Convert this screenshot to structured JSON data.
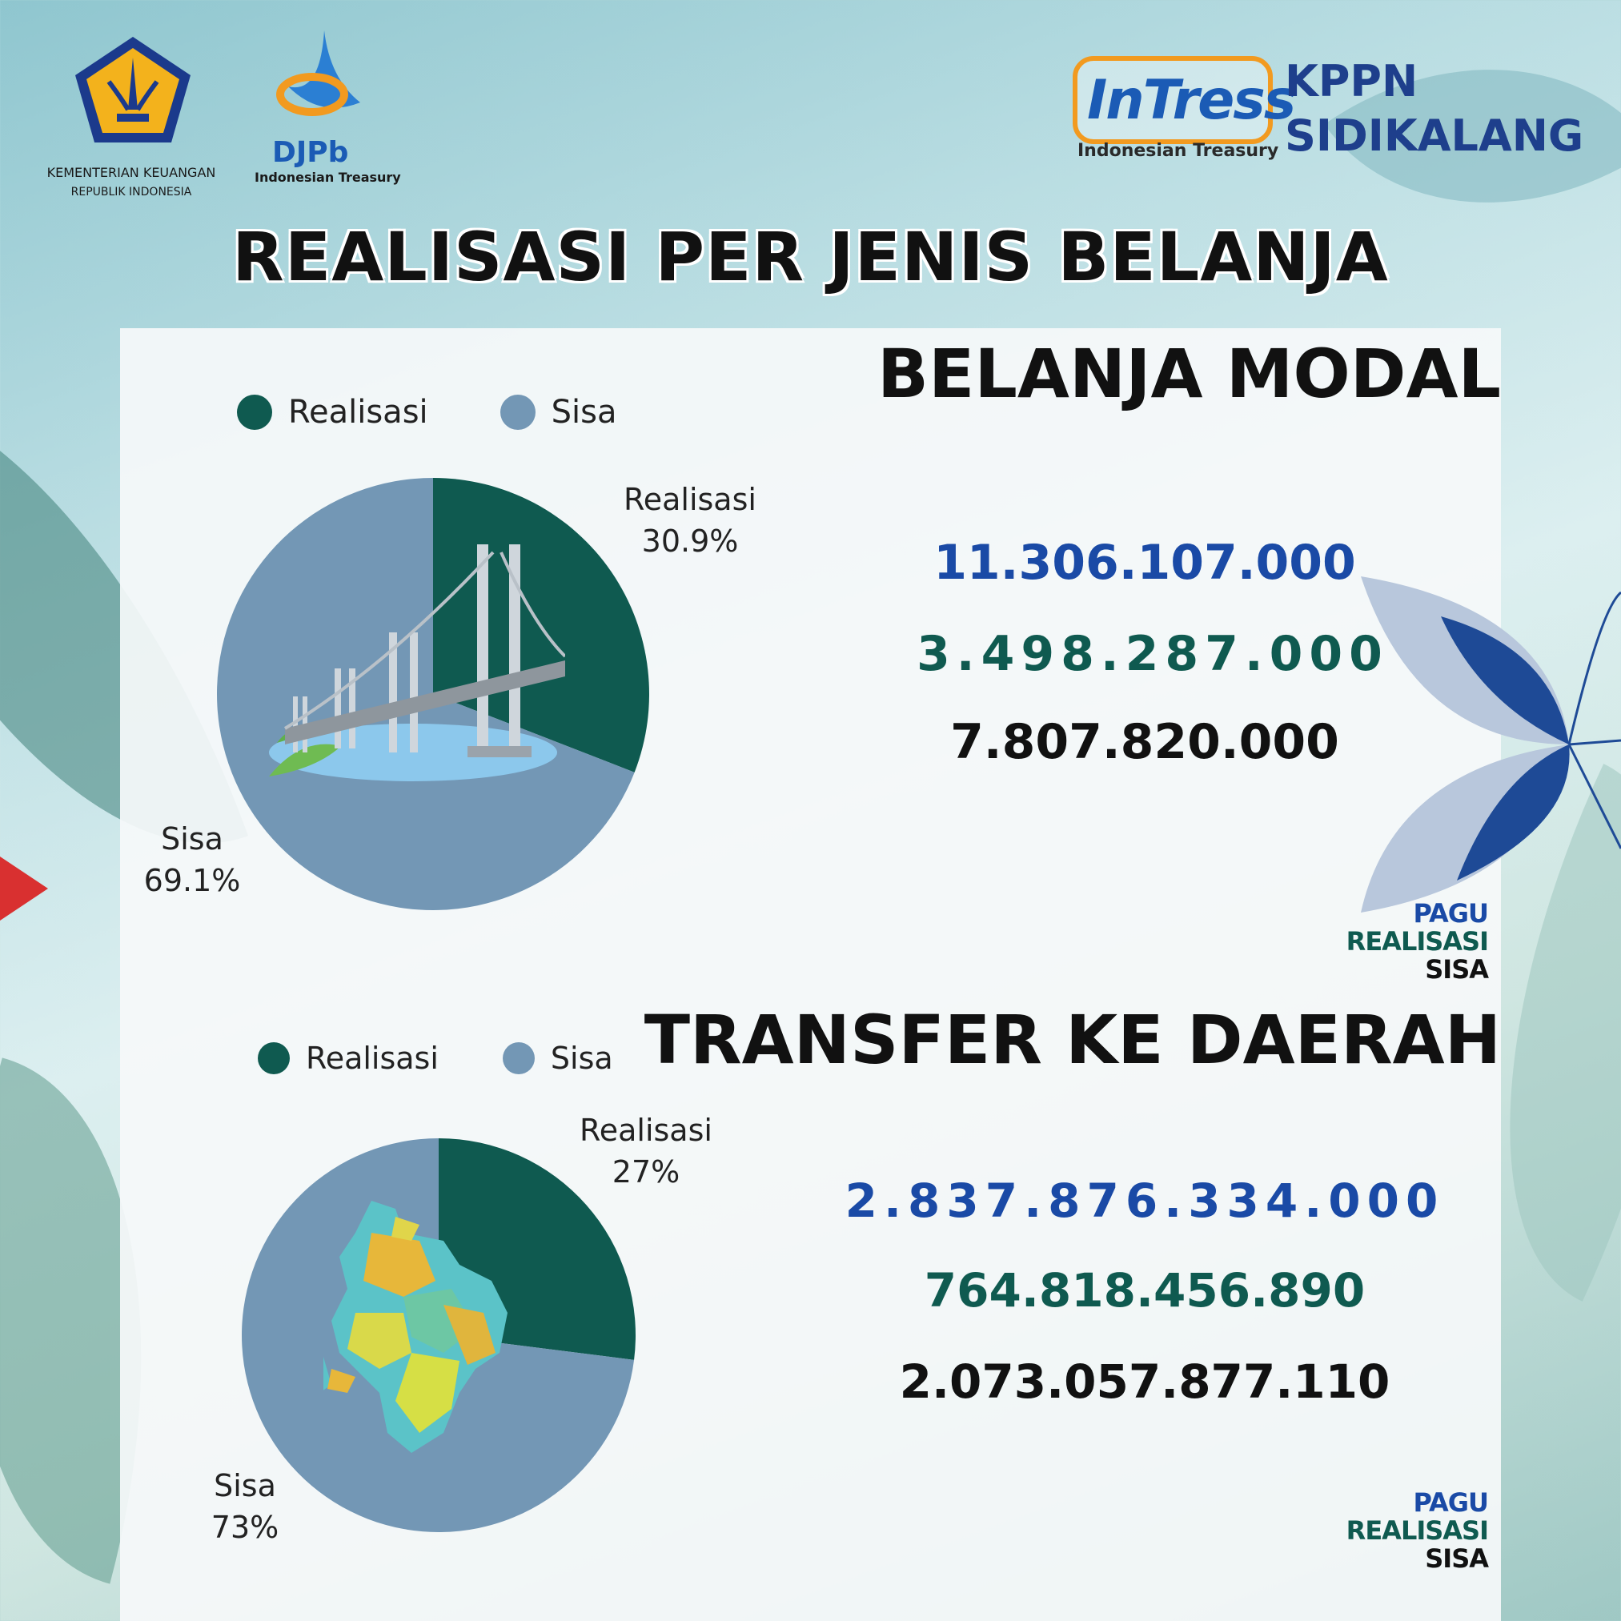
{
  "header": {
    "ministry_line1": "KEMENTERIAN KEUANGAN",
    "ministry_line2": "REPUBLIK INDONESIA",
    "djpb_name": "DJPb",
    "djpb_sub": "Indonesian Treasury",
    "intress_name": "InTress",
    "intress_sub": "Indonesian Treasury",
    "office_line1": "KPPN",
    "office_line2": "SIDIKALANG"
  },
  "title": "REALISASI PER JENIS BELANJA",
  "keys": {
    "pagu": "PAGU",
    "realisasi": "REALISASI",
    "sisa": "SISA"
  },
  "colors": {
    "realisasi": "#0f5a50",
    "sisa": "#7397b5",
    "pagu_text": "#1a4aa6",
    "realisasi_text": "#0f5a50",
    "sisa_text": "#111111"
  },
  "icons": {
    "belanja_modal": "bridge-illustration",
    "transfer_daerah": "region-map-illustration"
  },
  "sections": [
    {
      "title": "BELANJA MODAL",
      "pagu": "11.306.107.000",
      "realisasi": "3.498.287.000",
      "sisa": "7.807.820.000"
    },
    {
      "title": "TRANSFER KE DAERAH",
      "pagu": "2.837.876.334.000",
      "realisasi": "764.818.456.890",
      "sisa": "2.073.057.877.110"
    }
  ],
  "chart_data": [
    {
      "type": "pie",
      "categories": [
        "Realisasi",
        "Sisa"
      ],
      "values": [
        30.9,
        69.1
      ],
      "value_labels": [
        "30.9%",
        "69.1%"
      ],
      "legend": [
        "Realisasi",
        "Sisa"
      ],
      "legend_position": "top"
    },
    {
      "type": "pie",
      "categories": [
        "Realisasi",
        "Sisa"
      ],
      "values": [
        27,
        73
      ],
      "value_labels": [
        "27%",
        "73%"
      ],
      "legend": [
        "Realisasi",
        "Sisa"
      ],
      "legend_position": "top"
    }
  ]
}
